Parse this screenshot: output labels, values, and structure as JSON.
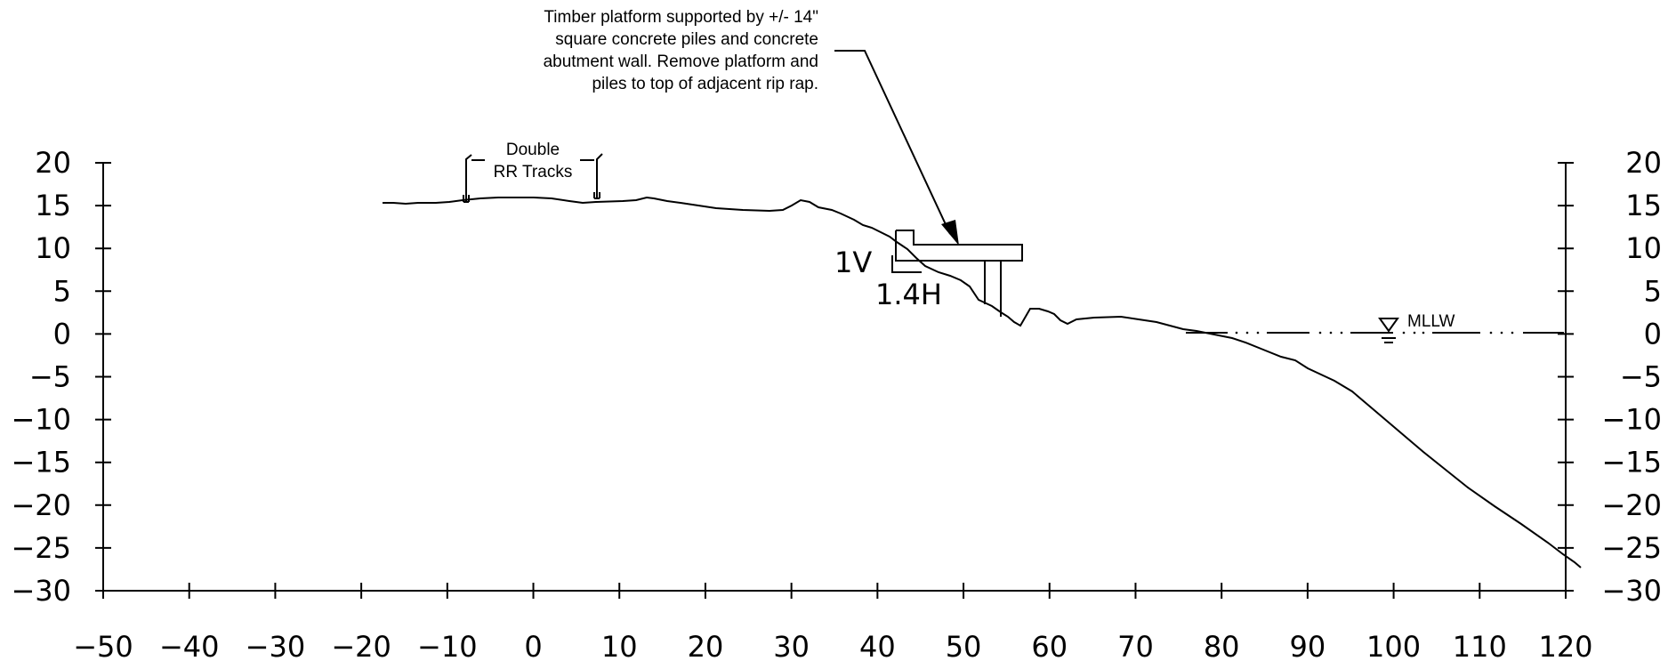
{
  "diagram": {
    "axes": {
      "x_ticks": [
        "−50",
        "−40",
        "−30",
        "−20",
        "−10",
        "0",
        "10",
        "20",
        "30",
        "40",
        "50",
        "60",
        "70",
        "80",
        "90",
        "100",
        "110",
        "120"
      ],
      "y_ticks": [
        "20",
        "15",
        "10",
        "5",
        "0",
        "−5",
        "−10",
        "−15",
        "−20",
        "−25",
        "−30"
      ]
    },
    "annotations": {
      "callout": [
        "Timber platform supported by +/- 14\"",
        "square concrete piles and concrete",
        "abutment wall. Remove platform and",
        "piles to top of adjacent rip rap."
      ],
      "tracks": [
        "Double",
        "RR Tracks"
      ],
      "slope_v": "1V",
      "slope_h": "1.4H",
      "water_level": "MLLW"
    }
  }
}
